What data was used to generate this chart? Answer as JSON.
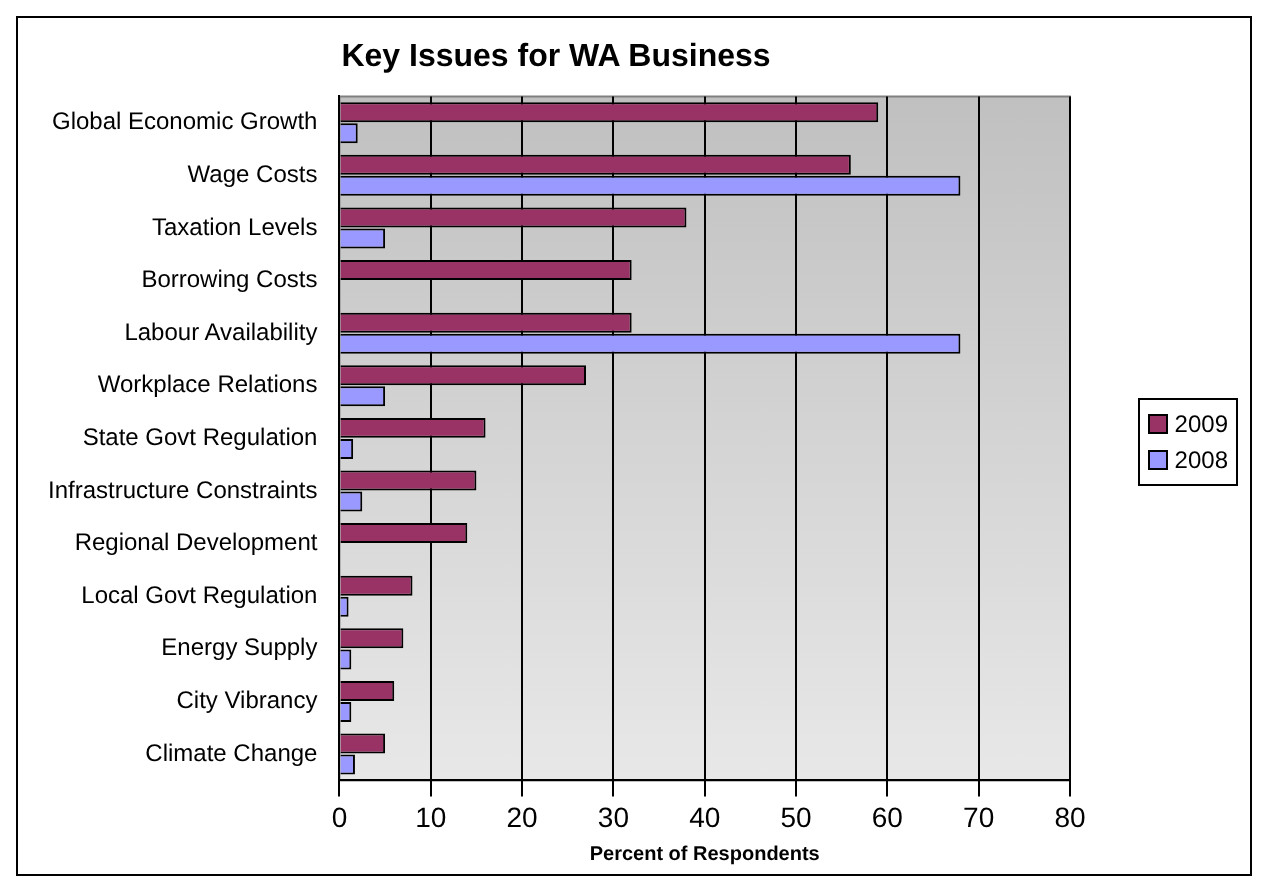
{
  "chart_data": {
    "type": "bar",
    "orientation": "horizontal",
    "title": "Key Issues for WA Business",
    "xlabel": "Percent of Respondents",
    "categories": [
      "Global Economic Growth",
      "Wage Costs",
      "Taxation Levels",
      "Borrowing Costs",
      "Labour Availability",
      "Workplace Relations",
      "State Govt Regulation",
      "Infrastructure Constraints",
      "Regional Development",
      "Local Govt Regulation",
      "Energy Supply",
      "City Vibrancy",
      "Climate Change"
    ],
    "series": [
      {
        "name": "2009",
        "color": "#993366",
        "values": [
          59,
          56,
          38,
          32,
          32,
          27,
          16,
          15,
          14,
          8,
          7,
          6,
          5
        ]
      },
      {
        "name": "2008",
        "color": "#9999ff",
        "values": [
          2,
          68,
          5,
          null,
          68,
          5,
          1.5,
          2.5,
          null,
          1,
          1.3,
          1.3,
          1.7
        ]
      }
    ],
    "xlim": [
      0,
      80
    ],
    "xticks": [
      0,
      10,
      20,
      30,
      40,
      50,
      60,
      70,
      80
    ],
    "grid": "x",
    "legend": "right"
  }
}
